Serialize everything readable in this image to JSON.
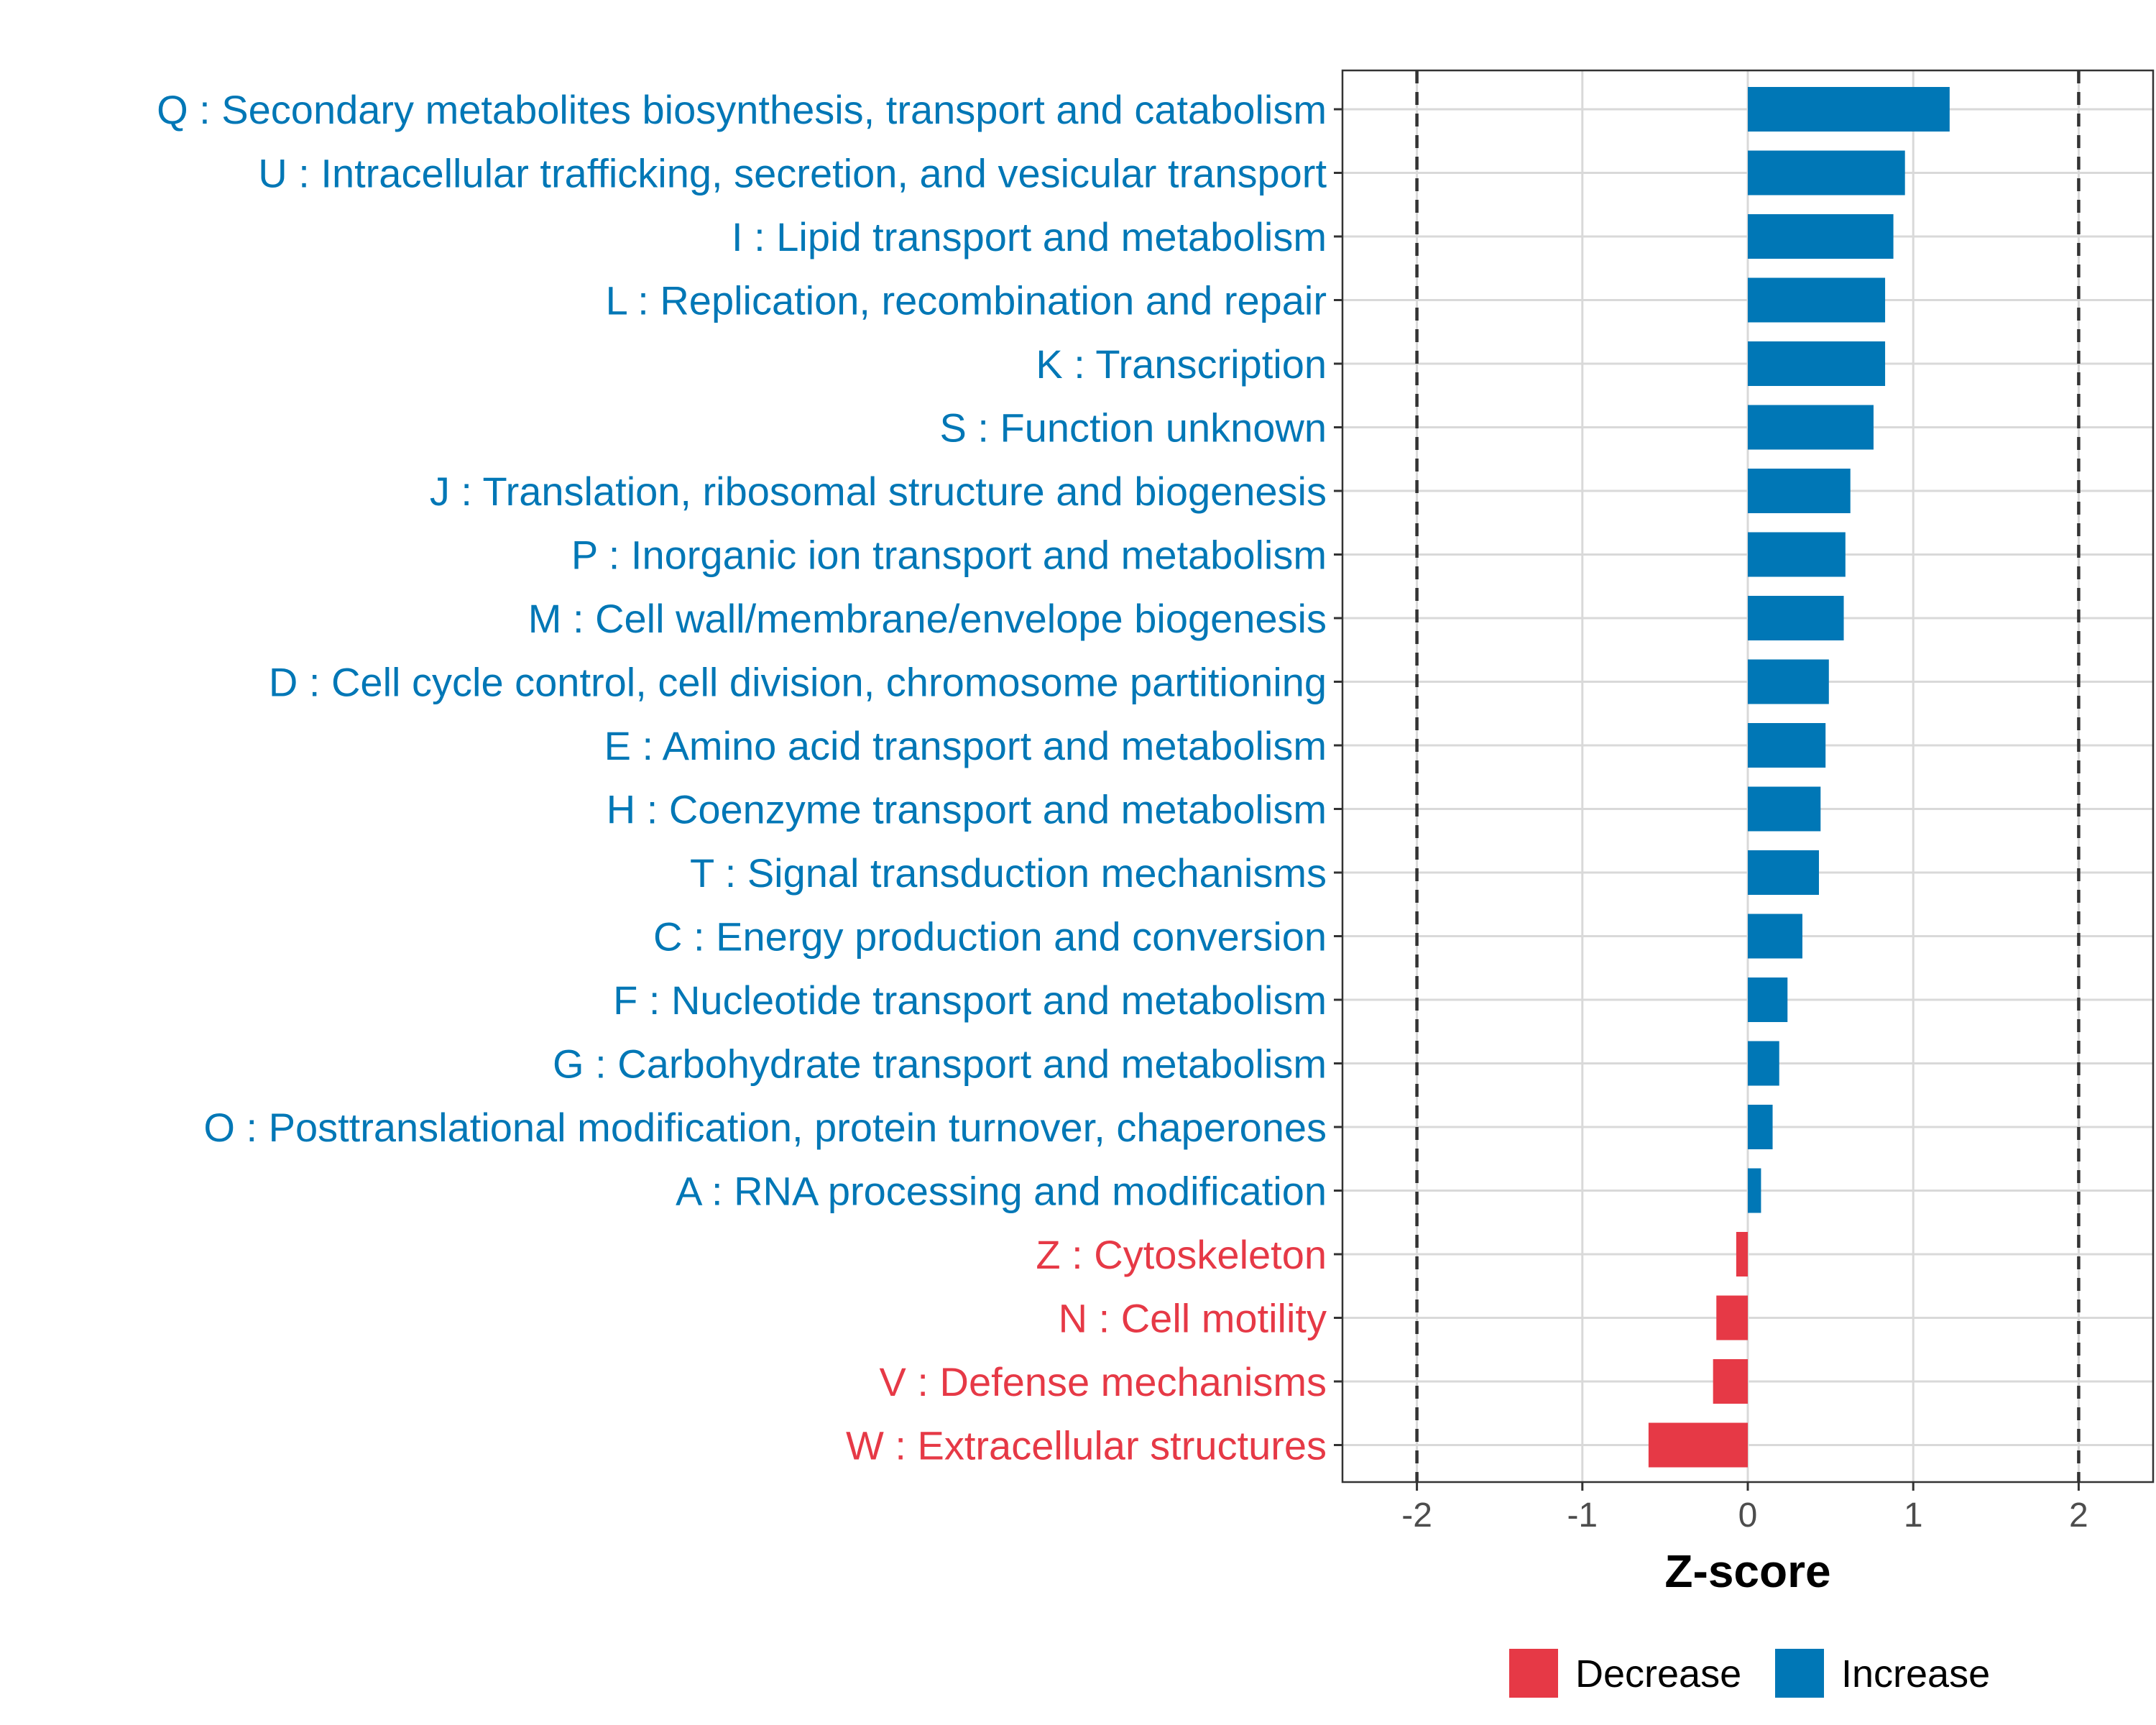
{
  "chart_data": {
    "type": "bar",
    "orientation": "horizontal",
    "title": "",
    "xlabel": "Z-score",
    "ylabel": "",
    "xlim": [
      -2.45,
      2.45
    ],
    "x_ticks": [
      -2,
      -1,
      0,
      1,
      2
    ],
    "x_tick_labels": [
      "-2",
      "-1",
      "0",
      "1",
      "2"
    ],
    "reference_lines": [
      -2,
      2
    ],
    "grid": true,
    "legend_position": "bottom",
    "legend": [
      {
        "name": "Decrease",
        "color": "#e63946"
      },
      {
        "name": "Increase",
        "color": "#0077b6"
      }
    ],
    "categories": [
      "Q : Secondary metabolites biosynthesis, transport and catabolism",
      "U : Intracellular trafficking, secretion, and vesicular transport",
      "I : Lipid transport and metabolism",
      "L : Replication, recombination and repair",
      "K : Transcription",
      "S : Function unknown",
      "J : Translation, ribosomal structure and biogenesis",
      "P : Inorganic ion transport and metabolism",
      "M : Cell wall/membrane/envelope biogenesis",
      "D : Cell cycle control, cell division, chromosome partitioning",
      "E : Amino acid transport and metabolism",
      "H : Coenzyme transport and metabolism",
      "T : Signal transduction mechanisms",
      "C : Energy production and conversion",
      "F : Nucleotide transport and metabolism",
      "G : Carbohydrate transport and metabolism",
      "O : Posttranslational modification, protein turnover, chaperones",
      "A : RNA processing and modification",
      "Z : Cytoskeleton",
      "N : Cell motility",
      "V : Defense mechanisms",
      "W : Extracellular structures"
    ],
    "values": [
      1.22,
      0.95,
      0.88,
      0.83,
      0.83,
      0.76,
      0.62,
      0.59,
      0.58,
      0.49,
      0.47,
      0.44,
      0.43,
      0.33,
      0.24,
      0.19,
      0.15,
      0.08,
      -0.07,
      -0.19,
      -0.21,
      -0.6
    ],
    "groups": [
      "Increase",
      "Increase",
      "Increase",
      "Increase",
      "Increase",
      "Increase",
      "Increase",
      "Increase",
      "Increase",
      "Increase",
      "Increase",
      "Increase",
      "Increase",
      "Increase",
      "Increase",
      "Increase",
      "Increase",
      "Increase",
      "Decrease",
      "Decrease",
      "Decrease",
      "Decrease"
    ]
  }
}
